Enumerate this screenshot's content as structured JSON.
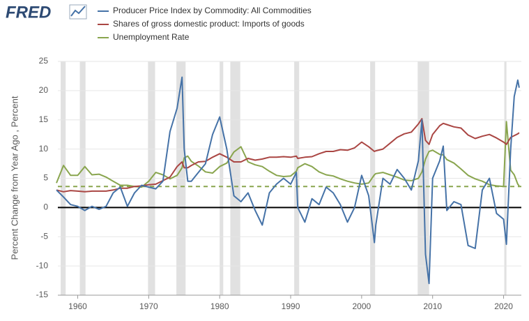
{
  "logo": "FRED",
  "chart_data": {
    "type": "line",
    "y_label": "Percent Change from Year Ago , Percent",
    "x": [
      1957,
      1958,
      1959,
      1960,
      1961,
      1962,
      1963,
      1964,
      1965,
      1966,
      1967,
      1968,
      1969,
      1970,
      1971,
      1972,
      1973,
      1974,
      1974.7,
      1975,
      1975.5,
      1976,
      1977,
      1978,
      1979,
      1980,
      1981,
      1982,
      1983,
      1984,
      1985,
      1986,
      1987,
      1988,
      1989,
      1990,
      1990.8,
      1991,
      1992,
      1993,
      1994,
      1995,
      1996,
      1997,
      1998,
      1999,
      2000,
      2001,
      2001.8,
      2002,
      2003,
      2004,
      2005,
      2006,
      2007,
      2008,
      2008.5,
      2009,
      2009.5,
      2010,
      2011,
      2011.5,
      2012,
      2013,
      2014,
      2015,
      2016,
      2017,
      2018,
      2019,
      2020,
      2020.4,
      2021,
      2021.5,
      2022,
      2022.2
    ],
    "series": [
      {
        "name": "Producer Price Index by Commodity: All Commodities",
        "color": "#4572a7",
        "values": [
          3,
          1.8,
          0.5,
          0.2,
          -0.5,
          0.2,
          -0.3,
          0.2,
          2.5,
          3.5,
          0.2,
          2.5,
          3.8,
          3.5,
          3.2,
          4.5,
          13,
          17,
          22.3,
          10,
          4.5,
          4.5,
          6,
          7.5,
          12.5,
          15.5,
          10,
          2,
          1,
          2.5,
          -0.5,
          -3,
          2.5,
          4,
          5,
          4,
          6,
          0,
          -2.5,
          1.5,
          0.5,
          3.5,
          2.5,
          0.5,
          -2.5,
          0,
          5.5,
          2,
          -6,
          -3,
          5,
          4,
          6.5,
          5,
          3,
          8,
          15,
          -8,
          -13,
          5,
          8,
          10.5,
          -0.5,
          1,
          0.5,
          -6.5,
          -7,
          3,
          5,
          -1,
          -2,
          -6.3,
          10,
          19,
          21.8,
          20.5
        ]
      },
      {
        "name": "Shares of gross domestic product: Imports of goods",
        "color": "#aa4643",
        "values": [
          3.0,
          2.7,
          2.9,
          2.8,
          2.7,
          2.8,
          2.8,
          2.8,
          3.0,
          3.3,
          3.3,
          3.6,
          3.7,
          3.9,
          4.0,
          4.6,
          5.2,
          7.0,
          7.8,
          6.8,
          6.8,
          7.2,
          7.8,
          7.9,
          8.6,
          9.2,
          8.6,
          7.8,
          7.8,
          8.4,
          8.1,
          8.3,
          8.6,
          8.6,
          8.7,
          8.6,
          8.8,
          8.4,
          8.6,
          8.7,
          9.2,
          9.6,
          9.6,
          9.9,
          9.8,
          10.2,
          11.2,
          10.4,
          9.6,
          9.7,
          10.0,
          11.0,
          12.0,
          12.6,
          12.9,
          14.3,
          15.2,
          11.5,
          10.8,
          12.5,
          14.0,
          14.4,
          14.2,
          13.8,
          13.6,
          12.4,
          11.8,
          12.2,
          12.5,
          11.9,
          11.2,
          10.8,
          12.0,
          12.3,
          12.6,
          12.8
        ]
      },
      {
        "name": "Unemployment Rate",
        "color": "#89a54e",
        "values": [
          4.2,
          7.2,
          5.5,
          5.5,
          7.0,
          5.6,
          5.7,
          5.2,
          4.5,
          3.8,
          3.8,
          3.6,
          3.5,
          4.5,
          6.0,
          5.6,
          4.9,
          5.5,
          6.8,
          8.5,
          8.8,
          7.9,
          7.1,
          6.1,
          5.9,
          7.0,
          7.6,
          9.5,
          10.4,
          7.8,
          7.3,
          7.0,
          6.2,
          5.5,
          5.3,
          5.4,
          6.2,
          6.8,
          7.5,
          7.0,
          6.1,
          5.6,
          5.4,
          4.9,
          4.5,
          4.2,
          4.0,
          4.2,
          5.6,
          5.8,
          6.0,
          5.6,
          5.2,
          4.7,
          4.6,
          5.0,
          6.1,
          8.3,
          9.6,
          9.8,
          9.1,
          9.0,
          8.2,
          7.6,
          6.6,
          5.5,
          4.9,
          4.5,
          3.9,
          3.7,
          3.6,
          14.7,
          6.4,
          5.6,
          4.0,
          3.7
        ]
      }
    ],
    "recessions": [
      [
        1957.6,
        1958.3
      ],
      [
        1960.3,
        1961.1
      ],
      [
        1969.9,
        1970.9
      ],
      [
        1973.9,
        1975.2
      ],
      [
        1980.0,
        1980.5
      ],
      [
        1981.5,
        1982.9
      ],
      [
        1990.5,
        1991.2
      ],
      [
        2001.2,
        2001.9
      ],
      [
        2007.9,
        2009.5
      ],
      [
        2020.1,
        2020.4
      ]
    ],
    "recession_color": "#e1e1e1",
    "reference_line": {
      "value": 3.6,
      "color": "#89a54e"
    },
    "xlim": [
      1957.2,
      2022.5
    ],
    "xticks": [
      1960,
      1970,
      1980,
      1990,
      2000,
      2010,
      2020
    ],
    "ylim": [
      -15,
      25
    ],
    "yticks": [
      -15,
      -10,
      -5,
      0,
      5,
      10,
      15,
      20,
      25
    ],
    "grid": true
  }
}
